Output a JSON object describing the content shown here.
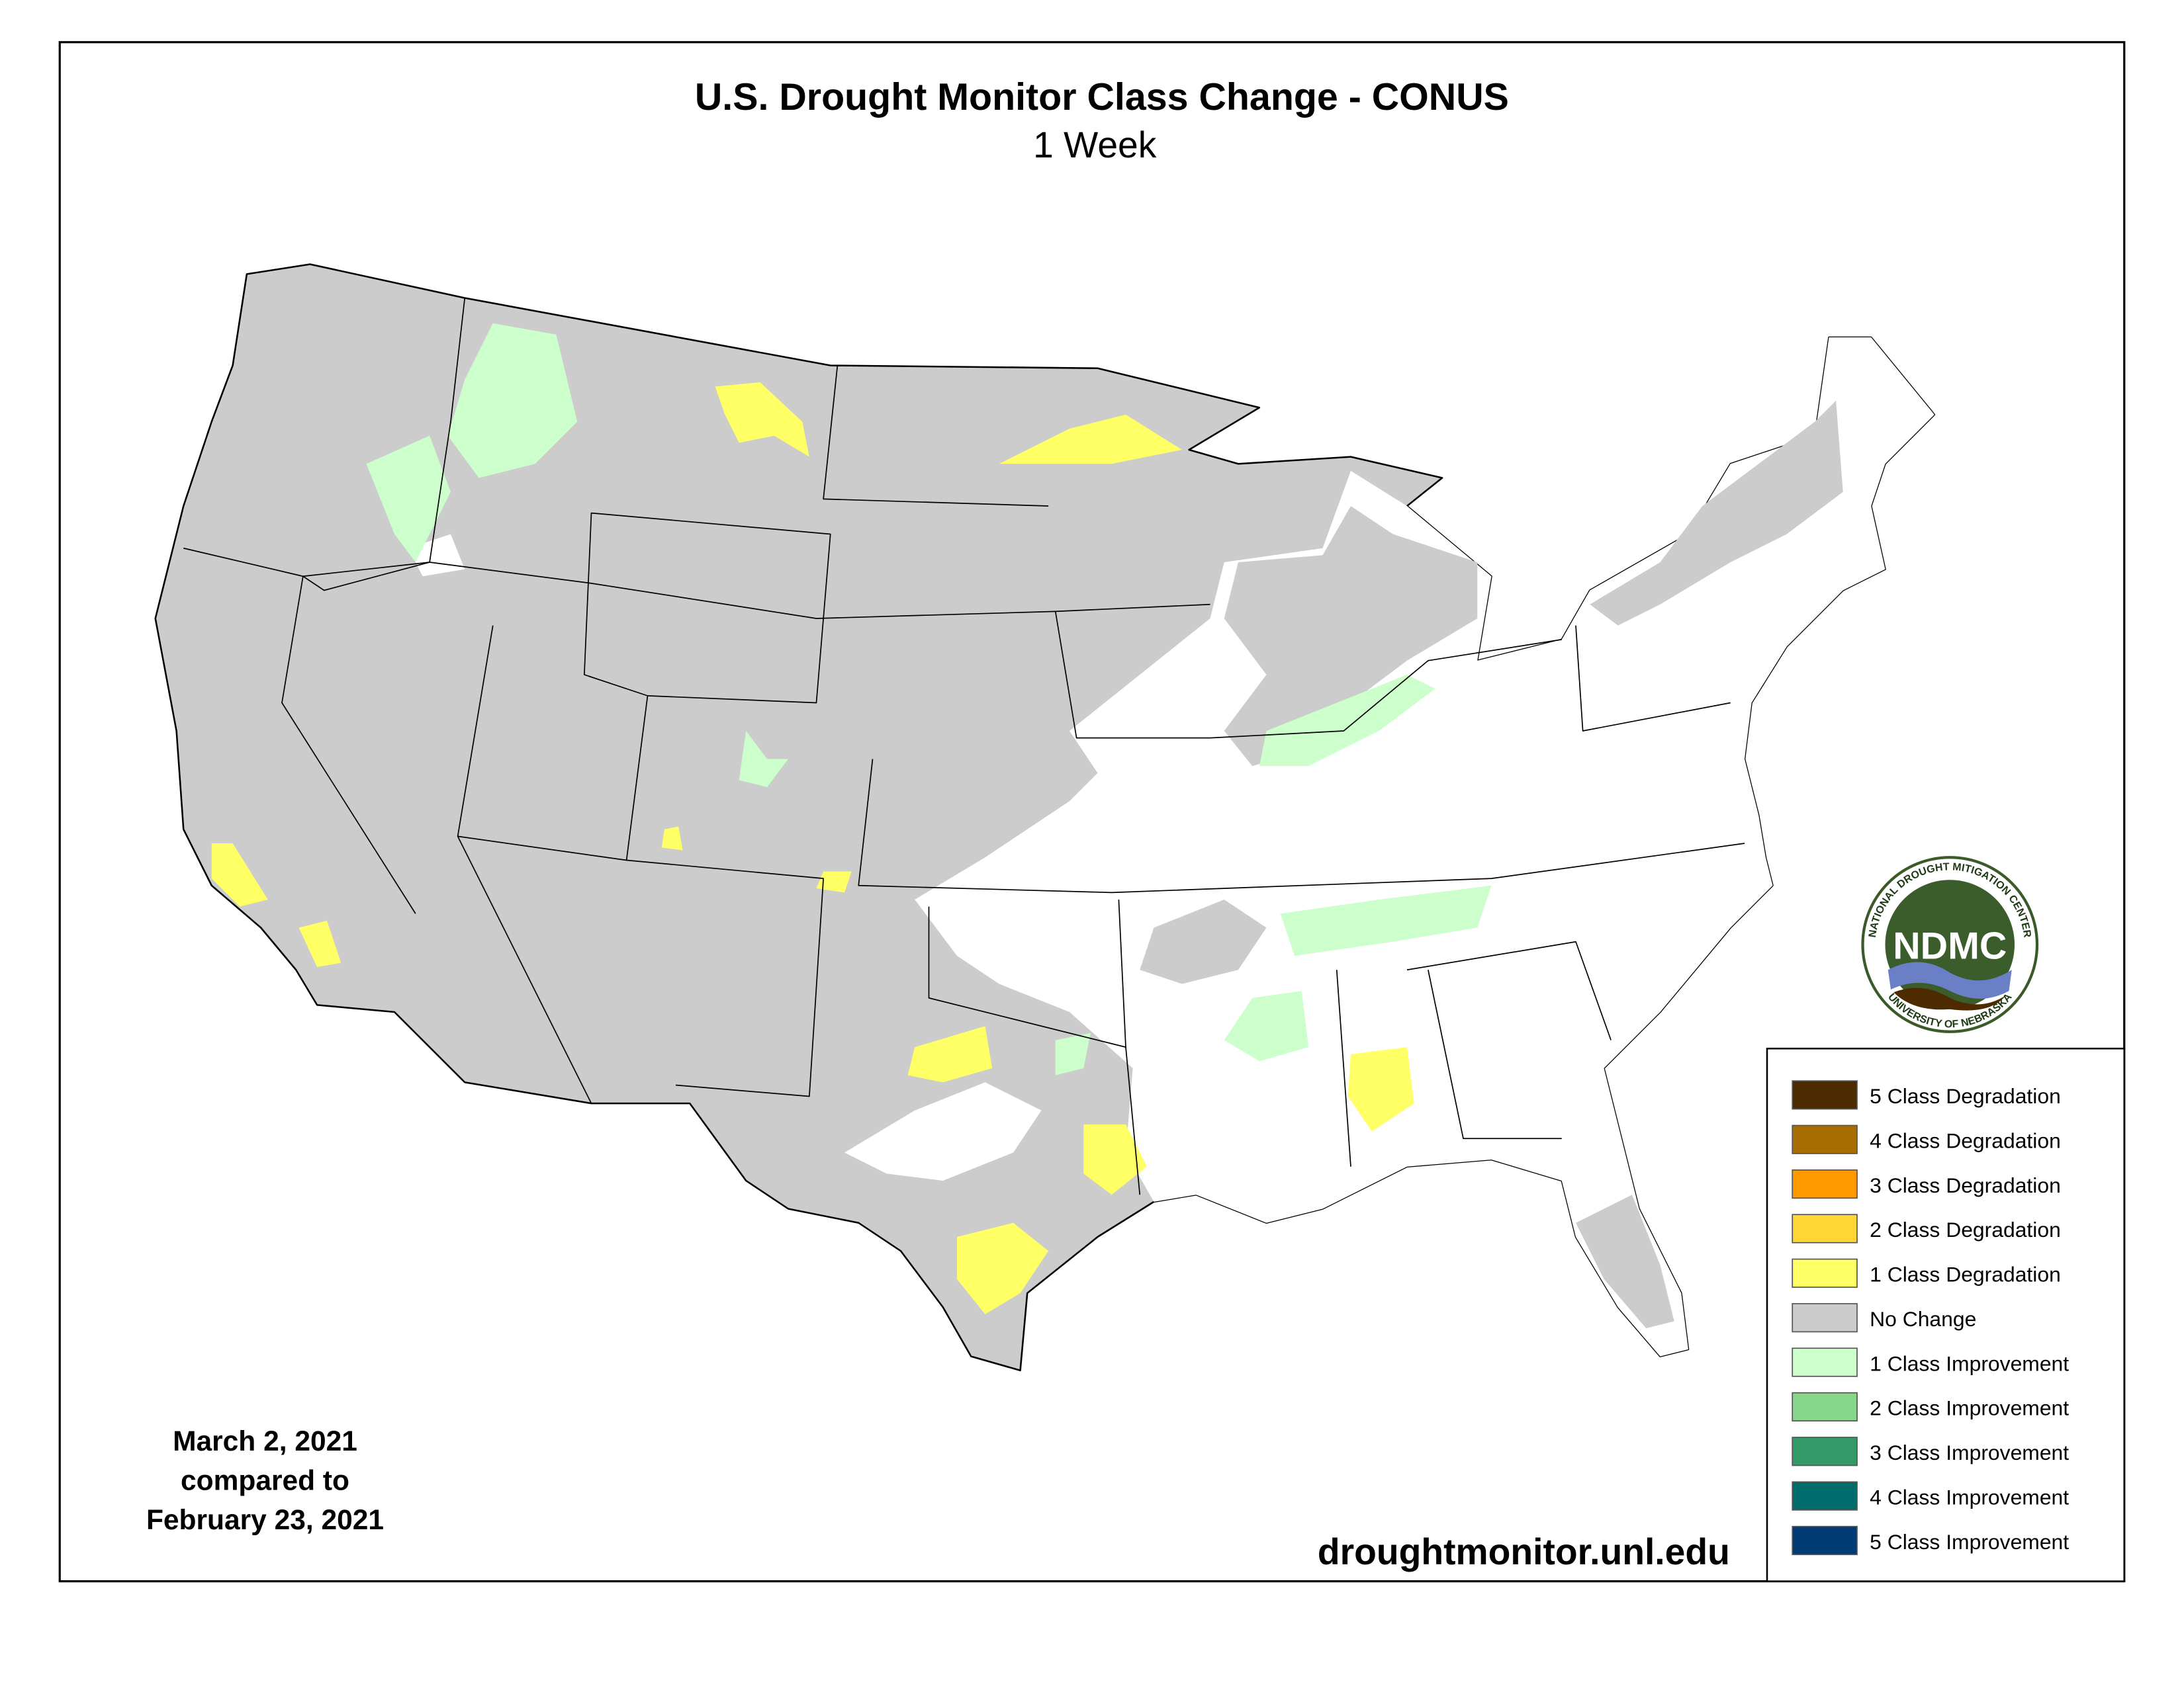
{
  "header": {
    "title": "U.S. Drought Monitor Class Change - CONUS",
    "subtitle": "1 Week"
  },
  "legend": {
    "items": [
      {
        "label": "5 Class Degradation",
        "color": "#4d2a00"
      },
      {
        "label": "4 Class Degradation",
        "color": "#a86d00"
      },
      {
        "label": "3 Class Degradation",
        "color": "#ff9900"
      },
      {
        "label": "2 Class Degradation",
        "color": "#ffd633"
      },
      {
        "label": "1 Class Degradation",
        "color": "#ffff66"
      },
      {
        "label": "No Change",
        "color": "#cccccc"
      },
      {
        "label": "1 Class Improvement",
        "color": "#ccffcc"
      },
      {
        "label": "2 Class Improvement",
        "color": "#88d68a"
      },
      {
        "label": "3 Class Improvement",
        "color": "#339966"
      },
      {
        "label": "4 Class Improvement",
        "color": "#006b6b"
      },
      {
        "label": "5 Class Improvement",
        "color": "#003c73"
      }
    ]
  },
  "dates": {
    "line1": "March 2, 2021",
    "line2": "compared to",
    "line3": "February 23, 2021"
  },
  "source": "droughtmonitor.unl.edu",
  "logo": {
    "acronym": "NDMC",
    "top_text": "NATIONAL DROUGHT MITIGATION CENTER",
    "bottom_text": "UNIVERSITY OF NEBRASKA"
  }
}
